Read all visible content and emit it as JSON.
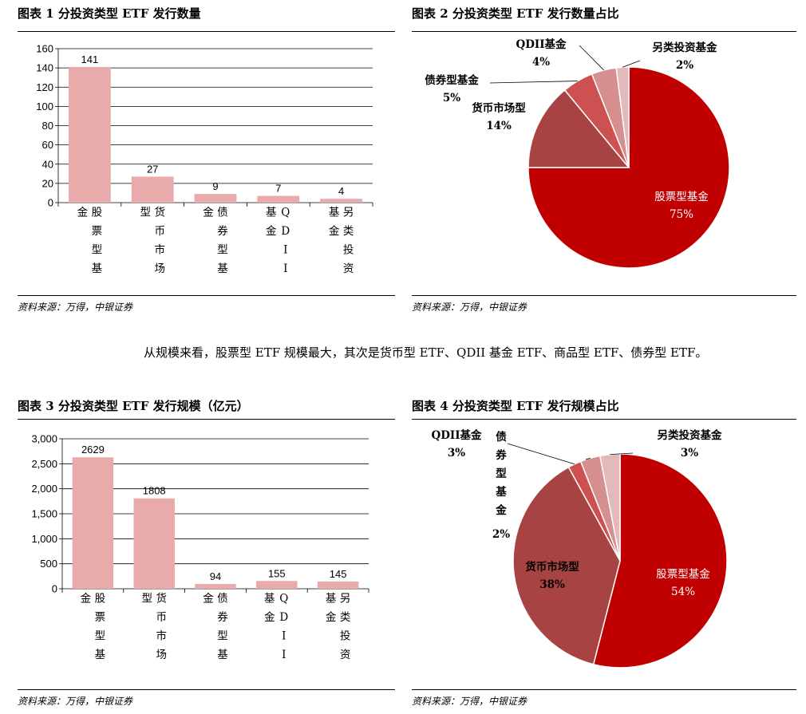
{
  "paragraph": "从规模来看，股票型 ETF 规模最大，其次是货币型 ETF、QDII 基金 ETF、商品型 ETF、债券型 ETF。",
  "source": "资料来源：万得，中银证券",
  "colors": {
    "bar": "#e8aaaa",
    "pie": [
      "#c00000",
      "#a84343",
      "#cd5151",
      "#d58f8f",
      "#e4b9b9"
    ]
  },
  "chart_data": [
    {
      "type": "bar",
      "title": "图表 1 分投资类型 ETF 发行数量",
      "categories": [
        "股票型基金",
        "货币市场型",
        "债券型基金",
        "QDII基金",
        "另类投资基金"
      ],
      "values": [
        141,
        27,
        9,
        7,
        4
      ],
      "value_labels": [
        "141",
        "27",
        "9",
        "7",
        "4"
      ],
      "ylim": [
        0,
        160
      ],
      "yticks": [
        0,
        20,
        40,
        60,
        80,
        100,
        120,
        140,
        160
      ],
      "ytick_labels": [
        "0",
        "20",
        "40",
        "60",
        "80",
        "100",
        "120",
        "140",
        "160"
      ],
      "grid": true
    },
    {
      "type": "pie",
      "title": "图表 2 分投资类型 ETF 发行数量占比",
      "categories": [
        "股票型基金",
        "货币市场型",
        "债券型基金",
        "QDII基金",
        "另类投资基金"
      ],
      "values": [
        75,
        14,
        5,
        4,
        2
      ],
      "pct_labels": [
        "75%",
        "14%",
        "5%",
        "4%",
        "2%"
      ]
    },
    {
      "type": "bar",
      "title": "图表 3 分投资类型 ETF 发行规模（亿元）",
      "categories": [
        "股票型基金",
        "货币市场型",
        "债券型基金",
        "QDII基金",
        "另类投资基金"
      ],
      "values": [
        2629,
        1808,
        94,
        155,
        145
      ],
      "value_labels": [
        "2629",
        "1808",
        "94",
        "155",
        "145"
      ],
      "ylim": [
        0,
        3000
      ],
      "yticks": [
        0,
        500,
        1000,
        1500,
        2000,
        2500,
        3000
      ],
      "ytick_labels": [
        "0",
        "500",
        "1,000",
        "1,500",
        "2,000",
        "2,500",
        "3,000"
      ],
      "grid": true
    },
    {
      "type": "pie",
      "title": "图表 4 分投资类型 ETF 发行规模占比",
      "categories": [
        "股票型基金",
        "货币市场型",
        "债券型基金",
        "QDII基金",
        "另类投资基金"
      ],
      "values": [
        54,
        38,
        2,
        3,
        3
      ],
      "pct_labels": [
        "54%",
        "38%",
        "2%",
        "3%",
        "3%"
      ]
    }
  ]
}
